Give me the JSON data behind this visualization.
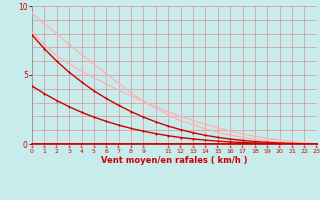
{
  "background_color": "#c8ecec",
  "grid_color": "#e08080",
  "xlabel": "Vent moyen/en rafales ( km/h )",
  "xlim": [
    0,
    23
  ],
  "ylim": [
    0,
    10
  ],
  "yticks": [
    0,
    5,
    10
  ],
  "x_grid": [
    0,
    1,
    2,
    3,
    4,
    5,
    6,
    7,
    8,
    9,
    10,
    11,
    12,
    13,
    14,
    15,
    16,
    17,
    18,
    19,
    20,
    21,
    22,
    23
  ],
  "x_ticks_labels": [
    0,
    1,
    2,
    3,
    4,
    5,
    6,
    7,
    8,
    9,
    "",
    11,
    12,
    13,
    14,
    15,
    16,
    17,
    18,
    19,
    20,
    21,
    22,
    23
  ],
  "lines": [
    {
      "x": [
        0,
        1,
        2,
        3,
        4,
        5,
        6,
        7,
        8,
        9,
        10,
        11,
        12,
        13,
        14,
        15,
        16,
        17,
        18,
        19,
        20,
        21,
        22,
        23
      ],
      "y": [
        9.5,
        8.7,
        8.0,
        7.2,
        6.5,
        5.8,
        5.1,
        4.4,
        3.7,
        3.1,
        2.6,
        2.1,
        1.7,
        1.4,
        1.1,
        0.85,
        0.65,
        0.48,
        0.34,
        0.23,
        0.14,
        0.08,
        0.03,
        0.0
      ],
      "color": "#ffb0b0",
      "lw": 0.9,
      "marker": "o",
      "ms": 1.5
    },
    {
      "x": [
        0,
        1,
        2,
        3,
        4,
        5,
        6,
        7,
        8,
        9,
        10,
        11,
        12,
        13,
        14,
        15,
        16,
        17,
        18,
        19,
        20,
        21,
        22,
        23
      ],
      "y": [
        8.1,
        7.2,
        6.4,
        5.8,
        5.3,
        4.8,
        4.35,
        3.9,
        3.5,
        3.1,
        2.7,
        2.35,
        2.0,
        1.7,
        1.42,
        1.17,
        0.94,
        0.74,
        0.56,
        0.41,
        0.28,
        0.18,
        0.09,
        0.0
      ],
      "color": "#ffb0b0",
      "lw": 0.9,
      "marker": "o",
      "ms": 1.5
    },
    {
      "x": [
        0,
        1,
        2,
        3,
        4,
        5,
        6,
        7,
        8,
        9,
        10,
        11,
        12,
        13,
        14,
        15,
        16,
        17,
        18,
        19,
        20,
        21,
        22,
        23
      ],
      "y": [
        7.9,
        6.9,
        6.0,
        5.2,
        4.5,
        3.85,
        3.3,
        2.8,
        2.35,
        1.95,
        1.6,
        1.3,
        1.04,
        0.82,
        0.63,
        0.48,
        0.36,
        0.26,
        0.18,
        0.12,
        0.07,
        0.04,
        0.01,
        0.0
      ],
      "color": "#cc0000",
      "lw": 1.0,
      "marker": "o",
      "ms": 1.5
    },
    {
      "x": [
        0,
        1,
        2,
        3,
        4,
        5,
        6,
        7,
        8,
        9,
        10,
        11,
        12,
        13,
        14,
        15,
        16,
        17,
        18,
        19,
        20,
        21,
        22,
        23
      ],
      "y": [
        4.2,
        3.65,
        3.15,
        2.7,
        2.3,
        1.95,
        1.64,
        1.37,
        1.13,
        0.93,
        0.75,
        0.6,
        0.47,
        0.37,
        0.28,
        0.21,
        0.15,
        0.11,
        0.07,
        0.04,
        0.02,
        0.01,
        0.0,
        0.0
      ],
      "color": "#cc0000",
      "lw": 1.0,
      "marker": "o",
      "ms": 1.5
    }
  ],
  "bottom_line_color": "#cc0000",
  "tick_color": "#cc0000",
  "label_color": "#cc0000",
  "tick_fontsize": 4.5,
  "label_fontsize": 6.0,
  "ytick_fontsize": 5.5
}
